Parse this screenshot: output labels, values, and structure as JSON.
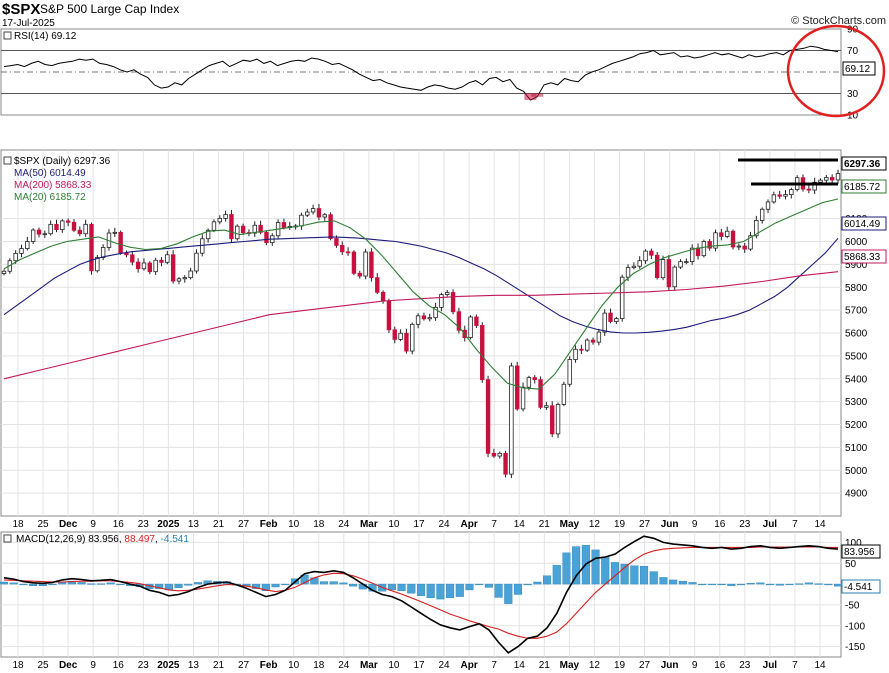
{
  "header": {
    "ticker": "$SPX",
    "name": "S&P 500 Large Cap Index",
    "date": "17-Jul-2025",
    "brand": "© StockCharts.com"
  },
  "rsi_panel": {
    "label": "RSI(14) 69.12",
    "last_tag": "69.12",
    "levels": [
      "90",
      "70",
      "50",
      "30",
      "10"
    ]
  },
  "price_panel": {
    "legend": {
      "main": "$SPX (Daily) 6297.36",
      "ma50": "MA(50) 6014.49",
      "ma200": "MA(200) 5868.33",
      "ma20": "MA(20) 6185.72"
    },
    "tags": {
      "close": "6297.36",
      "ma20": "6185.72",
      "ma50": "6014.49",
      "ma200": "5868.33"
    }
  },
  "macd_panel": {
    "label": "MACD(12,26,9) 83.956, 88.497, -4.541",
    "label_parts": [
      "MACD(12,26,9) 83.956, ",
      "88.497",
      ", ",
      "-4.541"
    ],
    "tags": {
      "macd": "83.956",
      "hist": "-4.541"
    }
  },
  "x_axis_labels": [
    "18",
    "25",
    "Dec",
    "9",
    "16",
    "23",
    "2025",
    "13",
    "21",
    "27",
    "Feb",
    "10",
    "18",
    "24",
    "Mar",
    "10",
    "17",
    "24",
    "Apr",
    "7",
    "14",
    "21",
    "May",
    "12",
    "19",
    "27",
    "Jun",
    "9",
    "16",
    "23",
    "Jul",
    "7",
    "14"
  ],
  "colors": {
    "up": "#ffffff",
    "down": "#c8103e",
    "ma20": "#2e7d32",
    "ma50": "#1c1c7a",
    "ma200": "#c2185b",
    "rsi_line": "#000000",
    "macd_line": "#000000",
    "signal_line": "#d62020",
    "histogram": "#4aa3d6",
    "annotation_circle": "#e02020",
    "grid": "#e3e3e3"
  },
  "chart_data": [
    {
      "type": "line",
      "title": "RSI(14) 69.12",
      "ylim": [
        10,
        90
      ],
      "y_ticks": [
        90,
        70,
        50,
        30,
        10
      ],
      "reference_lines": [
        70,
        30
      ],
      "series": [
        {
          "name": "RSI(14)",
          "values": [
            55,
            56,
            57,
            55,
            58,
            60,
            57,
            56,
            58,
            59,
            60,
            62,
            61,
            62,
            58,
            57,
            55,
            52,
            50,
            52,
            48,
            45,
            38,
            35,
            36,
            40,
            38,
            44,
            48,
            52,
            56,
            58,
            60,
            55,
            58,
            61,
            60,
            62,
            58,
            60,
            56,
            58,
            60,
            61,
            60,
            63,
            62,
            60,
            57,
            58,
            55,
            52,
            48,
            45,
            42,
            43,
            40,
            38,
            36,
            35,
            34,
            33,
            36,
            38,
            37,
            35,
            34,
            36,
            40,
            42,
            38,
            44,
            45,
            41,
            43,
            35,
            32,
            24,
            27,
            38,
            40,
            38,
            44,
            42,
            41,
            47,
            50,
            52,
            55,
            58,
            60,
            62,
            64,
            67,
            68,
            70,
            66,
            67,
            68,
            64,
            65,
            63,
            64,
            66,
            68,
            66,
            67,
            65,
            63,
            66,
            64,
            65,
            67,
            68,
            66,
            70,
            71,
            72,
            74,
            73,
            71,
            70,
            69
          ]
        }
      ]
    },
    {
      "type": "candlestick",
      "title": "$SPX (Daily) 6297.36",
      "ylim": [
        4800,
        6400
      ],
      "y_ticks": [
        4900,
        5000,
        5100,
        5200,
        5300,
        5400,
        5500,
        5600,
        5700,
        5800,
        5900,
        6000,
        6100
      ],
      "series": [
        {
          "name": "$SPX (Daily)",
          "closes": [
            5870,
            5916,
            5948,
            5969,
            6000,
            6050,
            6032,
            6034,
            6075,
            6052,
            6090,
            6084,
            6049,
            6034,
            6075,
            5872,
            5930,
            5974,
            6037,
            6040,
            5950,
            5942,
            5910,
            5881,
            5906,
            5868,
            5918,
            5909,
            5942,
            5827,
            5837,
            5842,
            5871,
            5949,
            6012,
            6049,
            6086,
            6101,
            6118,
            6012,
            6067,
            6039,
            6037,
            6071,
            6040,
            5995,
            6025,
            6083,
            6061,
            6066,
            6068,
            6115,
            6129,
            6144,
            6107,
            6117,
            6013,
            5983,
            5955,
            5954,
            5861,
            5849,
            5954,
            5842,
            5778,
            5739,
            5614,
            5572,
            5599,
            5521,
            5638,
            5675,
            5662,
            5667,
            5712,
            5768,
            5777,
            5693,
            5612,
            5580,
            5670,
            5633,
            5396,
            5074,
            5062,
            5074,
            4983,
            5456,
            5268,
            5363,
            5405,
            5396,
            5275,
            5282,
            5159,
            5288,
            5376,
            5484,
            5529,
            5525,
            5569,
            5560,
            5604,
            5687,
            5650,
            5663,
            5844,
            5886,
            5892,
            5916,
            5958,
            5940,
            5842,
            5921,
            5802,
            5888,
            5912,
            5912,
            5971,
            5938,
            6000,
            5971,
            6038,
            6022,
            6045,
            5976,
            5980,
            5967,
            6025,
            6092,
            6141,
            6173,
            6204,
            6198,
            6205,
            6227,
            6279,
            6229,
            6225,
            6259,
            6268,
            6280,
            6269,
            6297
          ]
        },
        {
          "name": "MA(50)",
          "values": [
            5680,
            5720,
            5760,
            5800,
            5840,
            5870,
            5900,
            5920,
            5935,
            5945,
            5955,
            5960,
            5965,
            5970,
            5975,
            5980,
            5985,
            5990,
            5995,
            6000,
            6005,
            6010,
            6012,
            6014,
            6016,
            6018,
            6020,
            6018,
            6015,
            6010,
            6005,
            6000,
            5990,
            5980,
            5965,
            5950,
            5930,
            5905,
            5880,
            5850,
            5815,
            5780,
            5745,
            5710,
            5675,
            5650,
            5630,
            5615,
            5605,
            5600,
            5600,
            5603,
            5608,
            5615,
            5625,
            5640,
            5655,
            5665,
            5680,
            5700,
            5730,
            5760,
            5800,
            5850,
            5900,
            5950,
            6014
          ]
        },
        {
          "name": "MA(200)",
          "values": [
            5400,
            5440,
            5480,
            5520,
            5560,
            5600,
            5640,
            5680,
            5700,
            5720,
            5740,
            5750,
            5760,
            5765,
            5765,
            5770,
            5775,
            5780,
            5790,
            5805,
            5825,
            5850,
            5868
          ]
        },
        {
          "name": "MA(20)",
          "values": [
            5880,
            5920,
            5950,
            5980,
            6000,
            6010,
            6020,
            5995,
            5975,
            5965,
            5970,
            5990,
            6020,
            6045,
            6050,
            6030,
            6040,
            6050,
            6060,
            6070,
            6085,
            6090,
            6060,
            6010,
            5940,
            5860,
            5780,
            5720,
            5680,
            5620,
            5530,
            5450,
            5380,
            5360,
            5355,
            5420,
            5520,
            5620,
            5720,
            5800,
            5860,
            5900,
            5930,
            5950,
            5970,
            5980,
            5985,
            6000,
            6040,
            6080,
            6110,
            6140,
            6170,
            6186
          ]
        }
      ]
    },
    {
      "type": "line",
      "title": "MACD(12,26,9) 83.956, 88.497, -4.541",
      "ylim": [
        -175,
        125
      ],
      "y_ticks": [
        100,
        50,
        0,
        -50,
        -100,
        -150
      ],
      "series": [
        {
          "name": "MACD",
          "values": [
            15,
            12,
            6,
            3,
            2,
            4,
            10,
            13,
            11,
            8,
            9,
            11,
            6,
            0,
            -5,
            -15,
            -20,
            -28,
            -25,
            -18,
            -8,
            0,
            3,
            5,
            -2,
            -10,
            -20,
            -30,
            -25,
            -15,
            5,
            25,
            30,
            28,
            32,
            28,
            15,
            0,
            -15,
            -25,
            -30,
            -40,
            -55,
            -70,
            -85,
            -98,
            -105,
            -110,
            -102,
            -95,
            -110,
            -140,
            -165,
            -150,
            -130,
            -125,
            -105,
            -70,
            -20,
            20,
            48,
            62,
            65,
            72,
            88,
            102,
            115,
            110,
            100,
            96,
            94,
            92,
            88,
            86,
            88,
            84,
            86,
            90,
            92,
            88,
            86,
            88,
            90,
            92,
            90,
            86,
            84
          ]
        },
        {
          "name": "Signal",
          "values": [
            10,
            9,
            8,
            7,
            6,
            5,
            5,
            6,
            7,
            7,
            8,
            8,
            6,
            4,
            1,
            -4,
            -9,
            -14,
            -16,
            -15,
            -12,
            -8,
            -4,
            -1,
            -2,
            -5,
            -9,
            -14,
            -18,
            -15,
            -8,
            3,
            15,
            22,
            26,
            25,
            20,
            12,
            2,
            -8,
            -16,
            -24,
            -33,
            -42,
            -52,
            -62,
            -72,
            -80,
            -88,
            -95,
            -102,
            -108,
            -118,
            -125,
            -130,
            -130,
            -125,
            -115,
            -95,
            -70,
            -45,
            -20,
            0,
            20,
            40,
            58,
            72,
            80,
            84,
            86,
            87,
            88,
            88,
            88,
            88,
            88,
            88,
            88,
            89,
            89,
            89,
            89,
            89,
            89,
            89,
            88,
            88
          ]
        },
        {
          "name": "Histogram",
          "values": [
            5,
            3,
            -2,
            -4,
            -4,
            -1,
            5,
            7,
            4,
            1,
            1,
            3,
            0,
            -4,
            -6,
            -11,
            -11,
            -14,
            -9,
            -3,
            4,
            8,
            7,
            6,
            0,
            -5,
            -11,
            -16,
            -7,
            0,
            13,
            22,
            15,
            6,
            6,
            3,
            -5,
            -12,
            -17,
            -17,
            -14,
            -16,
            -22,
            -28,
            -33,
            -36,
            -33,
            -30,
            -14,
            0,
            -8,
            -32,
            -47,
            -25,
            0,
            5,
            20,
            45,
            75,
            90,
            93,
            82,
            65,
            52,
            48,
            44,
            43,
            30,
            16,
            10,
            7,
            4,
            0,
            -2,
            0,
            -4,
            -2,
            2,
            3,
            -1,
            -3,
            -1,
            1,
            3,
            1,
            -2,
            -5
          ]
        }
      ]
    }
  ]
}
